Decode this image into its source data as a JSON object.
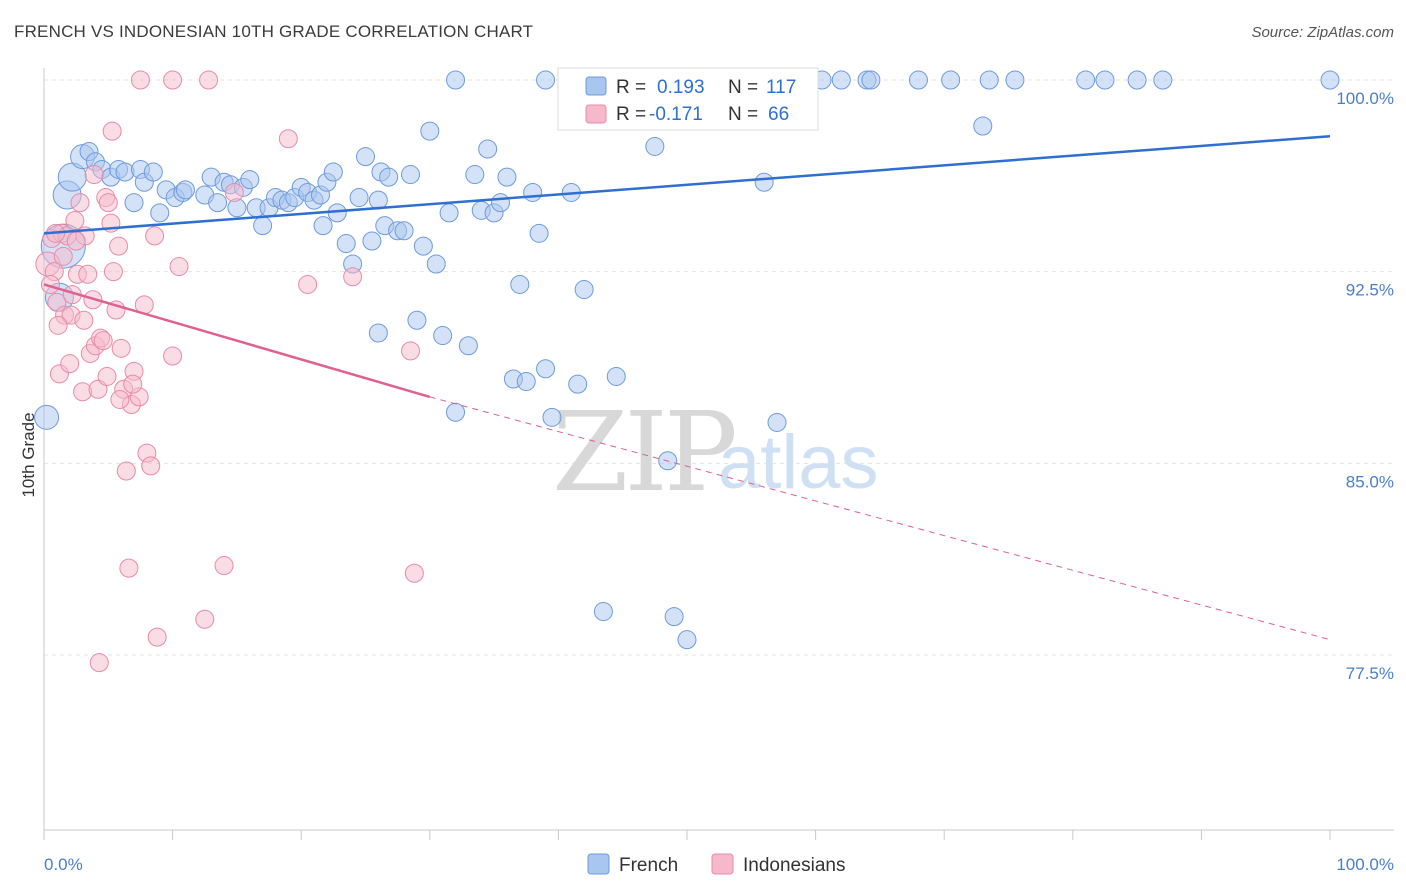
{
  "header": {
    "title": "FRENCH VS INDONESIAN 10TH GRADE CORRELATION CHART",
    "source": "Source: ZipAtlas.com"
  },
  "watermark": {
    "zip": "ZIP",
    "atlas": "atlas"
  },
  "stats": {
    "french": {
      "r_label": "R =",
      "r_value": "0.193",
      "n_label": "N =",
      "n_value": "117"
    },
    "indonesians": {
      "r_label": "R =",
      "r_value": "-0.171",
      "n_label": "N =",
      "n_value": "66"
    }
  },
  "legend": {
    "french": "French",
    "indonesians": "Indonesians"
  },
  "colors": {
    "french_fill": "#a9c6ef",
    "french_stroke": "#6d9bdc",
    "french_line": "#2f6fcf",
    "indo_fill": "#f6b9cc",
    "indo_stroke": "#e98aa8",
    "indo_line": "#e0608e",
    "grid": "#e3e3e3",
    "axis_text": "#4a7fc8"
  },
  "chart_data": {
    "type": "scatter",
    "title": "FRENCH VS INDONESIAN 10TH GRADE CORRELATION CHART",
    "xlabel": "",
    "ylabel": "10th Grade",
    "xlim": [
      0,
      100
    ],
    "ylim": [
      70,
      100.7
    ],
    "x_tick_labels": [
      "0.0%",
      "100.0%"
    ],
    "y_ticks": [
      77.5,
      85.0,
      92.5,
      100.0
    ],
    "y_tick_labels": [
      "77.5%",
      "85.0%",
      "92.5%",
      "100.0%"
    ],
    "grid": "horizontal dashed",
    "legend_position": "bottom-center",
    "series": [
      {
        "name": "French",
        "R": 0.193,
        "N": 117,
        "trend": {
          "x": [
            0,
            100
          ],
          "y": [
            94.0,
            97.8
          ],
          "style": "solid"
        },
        "points": [
          {
            "x": 0.2,
            "y": 86.8,
            "s": 2
          },
          {
            "x": 1.2,
            "y": 91.5,
            "s": 3
          },
          {
            "x": 1.5,
            "y": 93.5,
            "s": 5
          },
          {
            "x": 1.8,
            "y": 95.5,
            "s": 3
          },
          {
            "x": 2.2,
            "y": 96.2,
            "s": 3
          },
          {
            "x": 3.0,
            "y": 97.0,
            "s": 2
          },
          {
            "x": 3.5,
            "y": 97.2,
            "s": 1
          },
          {
            "x": 4.0,
            "y": 96.8,
            "s": 1
          },
          {
            "x": 4.5,
            "y": 96.5,
            "s": 1
          },
          {
            "x": 5.2,
            "y": 96.2,
            "s": 1
          },
          {
            "x": 5.8,
            "y": 96.5,
            "s": 1
          },
          {
            "x": 6.3,
            "y": 96.4,
            "s": 1
          },
          {
            "x": 7.0,
            "y": 95.2,
            "s": 1
          },
          {
            "x": 7.5,
            "y": 96.5,
            "s": 1
          },
          {
            "x": 7.8,
            "y": 96.0,
            "s": 1
          },
          {
            "x": 8.5,
            "y": 96.4,
            "s": 1
          },
          {
            "x": 9.0,
            "y": 94.8,
            "s": 1
          },
          {
            "x": 9.5,
            "y": 95.7,
            "s": 1
          },
          {
            "x": 10.2,
            "y": 95.4,
            "s": 1
          },
          {
            "x": 10.8,
            "y": 95.6,
            "s": 1
          },
          {
            "x": 11.0,
            "y": 95.7,
            "s": 1
          },
          {
            "x": 12.5,
            "y": 95.5,
            "s": 1
          },
          {
            "x": 13.0,
            "y": 96.2,
            "s": 1
          },
          {
            "x": 13.5,
            "y": 95.2,
            "s": 1
          },
          {
            "x": 14.0,
            "y": 96.0,
            "s": 1
          },
          {
            "x": 14.5,
            "y": 95.9,
            "s": 1
          },
          {
            "x": 15.0,
            "y": 95.0,
            "s": 1
          },
          {
            "x": 15.5,
            "y": 95.8,
            "s": 1
          },
          {
            "x": 16.0,
            "y": 96.1,
            "s": 1
          },
          {
            "x": 16.5,
            "y": 95.0,
            "s": 1
          },
          {
            "x": 17.0,
            "y": 94.3,
            "s": 1
          },
          {
            "x": 17.5,
            "y": 95.0,
            "s": 1
          },
          {
            "x": 18.0,
            "y": 95.4,
            "s": 1
          },
          {
            "x": 18.5,
            "y": 95.3,
            "s": 1
          },
          {
            "x": 19.0,
            "y": 95.2,
            "s": 1
          },
          {
            "x": 19.5,
            "y": 95.4,
            "s": 1
          },
          {
            "x": 20.0,
            "y": 95.8,
            "s": 1
          },
          {
            "x": 20.5,
            "y": 95.6,
            "s": 1
          },
          {
            "x": 21.0,
            "y": 95.3,
            "s": 1
          },
          {
            "x": 21.5,
            "y": 95.5,
            "s": 1
          },
          {
            "x": 21.7,
            "y": 94.3,
            "s": 1
          },
          {
            "x": 22.0,
            "y": 96.0,
            "s": 1
          },
          {
            "x": 22.5,
            "y": 96.4,
            "s": 1
          },
          {
            "x": 22.8,
            "y": 94.8,
            "s": 1
          },
          {
            "x": 23.5,
            "y": 93.6,
            "s": 1
          },
          {
            "x": 24.0,
            "y": 92.8,
            "s": 1
          },
          {
            "x": 24.5,
            "y": 95.4,
            "s": 1
          },
          {
            "x": 25.0,
            "y": 97.0,
            "s": 1
          },
          {
            "x": 25.5,
            "y": 93.7,
            "s": 1
          },
          {
            "x": 26.0,
            "y": 95.3,
            "s": 1
          },
          {
            "x": 26.5,
            "y": 94.3,
            "s": 1
          },
          {
            "x": 26.0,
            "y": 90.1,
            "s": 1
          },
          {
            "x": 26.2,
            "y": 96.4,
            "s": 1
          },
          {
            "x": 26.8,
            "y": 96.2,
            "s": 1
          },
          {
            "x": 27.5,
            "y": 94.1,
            "s": 1
          },
          {
            "x": 28.0,
            "y": 94.1,
            "s": 1
          },
          {
            "x": 28.5,
            "y": 96.3,
            "s": 1
          },
          {
            "x": 29.0,
            "y": 90.6,
            "s": 1
          },
          {
            "x": 29.5,
            "y": 93.5,
            "s": 1
          },
          {
            "x": 30.0,
            "y": 98.0,
            "s": 1
          },
          {
            "x": 30.5,
            "y": 92.8,
            "s": 1
          },
          {
            "x": 31.0,
            "y": 90.0,
            "s": 1
          },
          {
            "x": 31.5,
            "y": 94.8,
            "s": 1
          },
          {
            "x": 32.0,
            "y": 87.0,
            "s": 1
          },
          {
            "x": 33.0,
            "y": 89.6,
            "s": 1
          },
          {
            "x": 33.5,
            "y": 96.3,
            "s": 1
          },
          {
            "x": 34.0,
            "y": 94.9,
            "s": 1
          },
          {
            "x": 34.5,
            "y": 97.3,
            "s": 1
          },
          {
            "x": 35.0,
            "y": 94.8,
            "s": 1
          },
          {
            "x": 35.5,
            "y": 95.2,
            "s": 1
          },
          {
            "x": 36.0,
            "y": 96.2,
            "s": 1
          },
          {
            "x": 36.5,
            "y": 88.3,
            "s": 1
          },
          {
            "x": 37.0,
            "y": 92.0,
            "s": 1
          },
          {
            "x": 37.5,
            "y": 88.2,
            "s": 1
          },
          {
            "x": 38.0,
            "y": 95.6,
            "s": 1
          },
          {
            "x": 38.5,
            "y": 94.0,
            "s": 1
          },
          {
            "x": 39.0,
            "y": 88.7,
            "s": 1
          },
          {
            "x": 39.5,
            "y": 86.8,
            "s": 1
          },
          {
            "x": 41.0,
            "y": 95.6,
            "s": 1
          },
          {
            "x": 41.5,
            "y": 88.1,
            "s": 1
          },
          {
            "x": 42.0,
            "y": 91.8,
            "s": 1
          },
          {
            "x": 43.5,
            "y": 79.2,
            "s": 1
          },
          {
            "x": 44.5,
            "y": 88.4,
            "s": 1
          },
          {
            "x": 47.5,
            "y": 97.4,
            "s": 1
          },
          {
            "x": 49.0,
            "y": 79.0,
            "s": 1
          },
          {
            "x": 48.5,
            "y": 85.1,
            "s": 1
          },
          {
            "x": 50.0,
            "y": 78.1,
            "s": 1
          },
          {
            "x": 56.0,
            "y": 96.0,
            "s": 1
          },
          {
            "x": 57.0,
            "y": 86.6,
            "s": 1
          },
          {
            "x": 73.0,
            "y": 98.2,
            "s": 1
          },
          {
            "x": 32.0,
            "y": 100.0,
            "s": 1
          },
          {
            "x": 39.0,
            "y": 100.0,
            "s": 1
          },
          {
            "x": 41.5,
            "y": 100.0,
            "s": 1
          },
          {
            "x": 42.5,
            "y": 100.0,
            "s": 1
          },
          {
            "x": 44.0,
            "y": 100.0,
            "s": 1
          },
          {
            "x": 47.0,
            "y": 100.0,
            "s": 1
          },
          {
            "x": 49.5,
            "y": 100.0,
            "s": 1
          },
          {
            "x": 53.0,
            "y": 100.0,
            "s": 1
          },
          {
            "x": 58.0,
            "y": 100.0,
            "s": 1
          },
          {
            "x": 60.5,
            "y": 100.0,
            "s": 1
          },
          {
            "x": 62.0,
            "y": 100.0,
            "s": 1
          },
          {
            "x": 64.0,
            "y": 100.0,
            "s": 1
          },
          {
            "x": 64.3,
            "y": 100.0,
            "s": 1
          },
          {
            "x": 68.0,
            "y": 100.0,
            "s": 1
          },
          {
            "x": 70.5,
            "y": 100.0,
            "s": 1
          },
          {
            "x": 73.5,
            "y": 100.0,
            "s": 1
          },
          {
            "x": 75.5,
            "y": 100.0,
            "s": 1
          },
          {
            "x": 81.0,
            "y": 100.0,
            "s": 1
          },
          {
            "x": 82.5,
            "y": 100.0,
            "s": 1
          },
          {
            "x": 85.0,
            "y": 100.0,
            "s": 1
          },
          {
            "x": 87.0,
            "y": 100.0,
            "s": 1
          },
          {
            "x": 100.0,
            "y": 100.0,
            "s": 1
          }
        ]
      },
      {
        "name": "Indonesians",
        "R": -0.171,
        "N": 66,
        "trend": {
          "x": [
            0,
            30,
            100
          ],
          "y": [
            92.0,
            87.6,
            78.1
          ],
          "style": "solid to 30%, dashed after"
        },
        "points": [
          {
            "x": 0.3,
            "y": 92.8,
            "s": 2
          },
          {
            "x": 0.6,
            "y": 93.8,
            "s": 1
          },
          {
            "x": 0.8,
            "y": 92.5,
            "s": 1
          },
          {
            "x": 1.0,
            "y": 91.3,
            "s": 1
          },
          {
            "x": 1.2,
            "y": 88.5,
            "s": 1
          },
          {
            "x": 1.4,
            "y": 94.0,
            "s": 1
          },
          {
            "x": 1.6,
            "y": 90.8,
            "s": 1
          },
          {
            "x": 1.8,
            "y": 93.9,
            "s": 1
          },
          {
            "x": 2.0,
            "y": 88.9,
            "s": 1
          },
          {
            "x": 2.2,
            "y": 91.6,
            "s": 1
          },
          {
            "x": 2.4,
            "y": 94.5,
            "s": 1
          },
          {
            "x": 2.6,
            "y": 92.4,
            "s": 1
          },
          {
            "x": 2.8,
            "y": 95.2,
            "s": 1
          },
          {
            "x": 3.0,
            "y": 87.8,
            "s": 1
          },
          {
            "x": 3.2,
            "y": 93.9,
            "s": 1
          },
          {
            "x": 3.4,
            "y": 92.4,
            "s": 1
          },
          {
            "x": 3.6,
            "y": 89.3,
            "s": 1
          },
          {
            "x": 3.8,
            "y": 91.4,
            "s": 1
          },
          {
            "x": 4.0,
            "y": 89.6,
            "s": 1
          },
          {
            "x": 4.2,
            "y": 87.9,
            "s": 1
          },
          {
            "x": 4.4,
            "y": 89.9,
            "s": 1
          },
          {
            "x": 4.6,
            "y": 89.8,
            "s": 1
          },
          {
            "x": 4.8,
            "y": 95.4,
            "s": 1
          },
          {
            "x": 5.0,
            "y": 95.2,
            "s": 1
          },
          {
            "x": 5.2,
            "y": 94.4,
            "s": 1
          },
          {
            "x": 5.4,
            "y": 92.5,
            "s": 1
          },
          {
            "x": 5.6,
            "y": 91.0,
            "s": 1
          },
          {
            "x": 5.8,
            "y": 93.5,
            "s": 1
          },
          {
            "x": 6.0,
            "y": 89.5,
            "s": 1
          },
          {
            "x": 6.2,
            "y": 87.9,
            "s": 1
          },
          {
            "x": 6.4,
            "y": 84.7,
            "s": 1
          },
          {
            "x": 6.6,
            "y": 80.9,
            "s": 1
          },
          {
            "x": 6.8,
            "y": 87.3,
            "s": 1
          },
          {
            "x": 7.0,
            "y": 88.6,
            "s": 1
          },
          {
            "x": 7.4,
            "y": 87.6,
            "s": 1
          },
          {
            "x": 7.8,
            "y": 91.2,
            "s": 1
          },
          {
            "x": 8.0,
            "y": 85.4,
            "s": 1
          },
          {
            "x": 8.3,
            "y": 84.9,
            "s": 1
          },
          {
            "x": 8.6,
            "y": 93.9,
            "s": 1
          },
          {
            "x": 8.8,
            "y": 78.2,
            "s": 1
          },
          {
            "x": 10.0,
            "y": 89.2,
            "s": 1
          },
          {
            "x": 10.5,
            "y": 92.7,
            "s": 1
          },
          {
            "x": 12.5,
            "y": 78.9,
            "s": 1
          },
          {
            "x": 14.0,
            "y": 81.0,
            "s": 1
          },
          {
            "x": 14.8,
            "y": 95.6,
            "s": 1
          },
          {
            "x": 19.0,
            "y": 97.7,
            "s": 1
          },
          {
            "x": 20.5,
            "y": 92.0,
            "s": 1
          },
          {
            "x": 24.0,
            "y": 92.3,
            "s": 1
          },
          {
            "x": 28.5,
            "y": 89.4,
            "s": 1
          },
          {
            "x": 28.8,
            "y": 80.7,
            "s": 1
          },
          {
            "x": 4.3,
            "y": 77.2,
            "s": 1
          },
          {
            "x": 5.3,
            "y": 98.0,
            "s": 1
          },
          {
            "x": 7.5,
            "y": 100.0,
            "s": 1
          },
          {
            "x": 10.0,
            "y": 100.0,
            "s": 1
          },
          {
            "x": 12.8,
            "y": 100.0,
            "s": 1
          },
          {
            "x": 1.5,
            "y": 93.1,
            "s": 1
          },
          {
            "x": 2.1,
            "y": 90.8,
            "s": 1
          },
          {
            "x": 0.9,
            "y": 94.0,
            "s": 1
          },
          {
            "x": 3.9,
            "y": 96.3,
            "s": 1
          },
          {
            "x": 6.9,
            "y": 88.1,
            "s": 1
          },
          {
            "x": 3.1,
            "y": 90.6,
            "s": 1
          },
          {
            "x": 1.1,
            "y": 90.4,
            "s": 1
          },
          {
            "x": 2.5,
            "y": 93.7,
            "s": 1
          },
          {
            "x": 4.9,
            "y": 88.4,
            "s": 1
          },
          {
            "x": 5.9,
            "y": 87.5,
            "s": 1
          },
          {
            "x": 0.5,
            "y": 92.0,
            "s": 1
          }
        ]
      }
    ]
  }
}
